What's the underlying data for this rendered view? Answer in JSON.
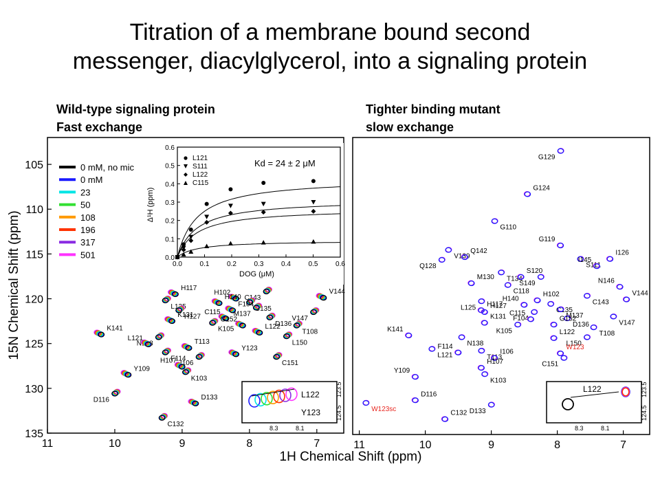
{
  "title": {
    "line1": "Titration of a membrane bound second",
    "line2": "messenger, diacylglycerol, into a signaling protein"
  },
  "left_heading": {
    "line1": "Wild-type signaling protein",
    "line2": "Fast exchange"
  },
  "right_heading": {
    "line1": "Tighter binding mutant",
    "line2": "slow exchange"
  },
  "chart_data": [
    {
      "type": "scatter",
      "panel": "left-hsqc",
      "xlabel": "1H Chemical Shift (ppm)",
      "ylabel": "15N Chemical Shift (ppm)",
      "xlim": [
        11,
        6.6
      ],
      "ylim": [
        135,
        102
      ],
      "x_ticks": [
        11,
        10,
        9,
        8,
        7
      ],
      "y_ticks": [
        105,
        110,
        115,
        120,
        125,
        130,
        135
      ],
      "legend": {
        "placement": "top-left",
        "entries": [
          {
            "label": "0 mM, no mic",
            "color": "#000000"
          },
          {
            "label": "0 mM",
            "color": "#1a1aff"
          },
          {
            "label": "23",
            "color": "#00e5e5"
          },
          {
            "label": "50",
            "color": "#33e033"
          },
          {
            "label": "108",
            "color": "#ff9900"
          },
          {
            "label": "196",
            "color": "#ff3300"
          },
          {
            "label": "317",
            "color": "#8a2be2"
          },
          {
            "label": "501",
            "color": "#ff33ff"
          }
        ]
      },
      "peaks": [
        {
          "label": "C143",
          "x": 7.75,
          "y": 119.2
        },
        {
          "label": "H117",
          "x": 9.1,
          "y": 119.5
        },
        {
          "label": "L125",
          "x": 9.25,
          "y": 120.2
        },
        {
          "label": "H102",
          "x": 8.2,
          "y": 120.0
        },
        {
          "label": "C135",
          "x": 8.0,
          "y": 120.4
        },
        {
          "label": "H140",
          "x": 8.45,
          "y": 120.5
        },
        {
          "label": "M137",
          "x": 7.9,
          "y": 121.0
        },
        {
          "label": "F104",
          "x": 8.25,
          "y": 121.3
        },
        {
          "label": "H127",
          "x": 9.05,
          "y": 121.3
        },
        {
          "label": "C115",
          "x": 8.35,
          "y": 122.2
        },
        {
          "label": "D136",
          "x": 7.7,
          "y": 122.1
        },
        {
          "label": "V144",
          "x": 6.9,
          "y": 119.9
        },
        {
          "label": "V147",
          "x": 7.05,
          "y": 121.5
        },
        {
          "label": "K131",
          "x": 9.15,
          "y": 122.5
        },
        {
          "label": "K105",
          "x": 8.55,
          "y": 122.7
        },
        {
          "label": "G152",
          "x": 8.1,
          "y": 123.0
        },
        {
          "label": "T108",
          "x": 7.3,
          "y": 123.0
        },
        {
          "label": "K141",
          "x": 10.2,
          "y": 124.0
        },
        {
          "label": "N138",
          "x": 9.35,
          "y": 124.3
        },
        {
          "label": "L122",
          "x": 7.85,
          "y": 123.8
        },
        {
          "label": "L150",
          "x": 7.45,
          "y": 124.2
        },
        {
          "label": "L121",
          "x": 9.5,
          "y": 125.1
        },
        {
          "label": "F114",
          "x": 9.25,
          "y": 126.0
        },
        {
          "label": "T113",
          "x": 8.9,
          "y": 125.5
        },
        {
          "label": "I106",
          "x": 8.75,
          "y": 126.5
        },
        {
          "label": "Y123",
          "x": 8.2,
          "y": 126.2
        },
        {
          "label": "C151",
          "x": 7.6,
          "y": 126.5
        },
        {
          "label": "H107",
          "x": 9.0,
          "y": 127.6
        },
        {
          "label": "K103",
          "x": 8.95,
          "y": 128.2
        },
        {
          "label": "Y109",
          "x": 9.8,
          "y": 128.5
        },
        {
          "label": "D116",
          "x": 10.0,
          "y": 130.6
        },
        {
          "label": "D133",
          "x": 8.8,
          "y": 131.7
        },
        {
          "label": "C132",
          "x": 9.3,
          "y": 133.3
        }
      ],
      "inset": {
        "labels": [
          "L122",
          "Y123"
        ],
        "x_ticks": [
          "8.3",
          "8.1"
        ],
        "y_ticks": [
          "124.5",
          "123.5"
        ]
      }
    },
    {
      "type": "line",
      "panel": "binding-curve-inset",
      "xlabel": "DOG (μM)",
      "ylabel": "Δ¹H (ppm)",
      "annotation": "Kd = 24 ± 2 μM",
      "xlim": [
        0,
        0.6
      ],
      "ylim": [
        0,
        0.6
      ],
      "x_ticks": [
        "0.0",
        "0.1",
        "0.2",
        "0.3",
        "0.4",
        "0.5",
        "0.6"
      ],
      "y_ticks": [
        "0.0",
        "0.1",
        "0.2",
        "0.3",
        "0.4",
        "0.5",
        "0.6"
      ],
      "legend": {
        "placement": "top-left"
      },
      "x": [
        0,
        0.023,
        0.05,
        0.108,
        0.196,
        0.317,
        0.501
      ],
      "series": [
        {
          "name": "L121",
          "marker": "circle",
          "values": [
            0,
            0.07,
            0.15,
            0.29,
            0.37,
            0.405,
            0.415
          ],
          "fit_max": 0.43
        },
        {
          "name": "S111",
          "marker": "triangle-down",
          "values": [
            0,
            0.05,
            0.11,
            0.22,
            0.28,
            0.29,
            0.3
          ],
          "fit_max": 0.315
        },
        {
          "name": "L122",
          "marker": "diamond",
          "values": [
            0,
            0.04,
            0.09,
            0.19,
            0.24,
            0.245,
            0.25
          ],
          "fit_max": 0.265
        },
        {
          "name": "C115",
          "marker": "triangle-up",
          "values": [
            0,
            0.015,
            0.03,
            0.06,
            0.075,
            0.08,
            0.085
          ],
          "fit_max": 0.09
        }
      ]
    },
    {
      "type": "scatter",
      "panel": "right-hsqc",
      "xlabel": "1H Chemical Shift (ppm)",
      "xlim": [
        11.1,
        6.6
      ],
      "ylim": [
        135,
        102
      ],
      "x_ticks": [
        11,
        10,
        9,
        8,
        7
      ],
      "peaks": [
        {
          "label": "G129",
          "x": 7.95,
          "y": 103.5
        },
        {
          "label": "G124",
          "x": 8.45,
          "y": 108.3
        },
        {
          "label": "G110",
          "x": 8.95,
          "y": 111.3
        },
        {
          "label": "G119",
          "x": 7.95,
          "y": 114.0
        },
        {
          "label": "V139",
          "x": 9.65,
          "y": 114.5
        },
        {
          "label": "Q142",
          "x": 9.4,
          "y": 115.3
        },
        {
          "label": "Q128",
          "x": 9.75,
          "y": 115.6
        },
        {
          "label": "I126",
          "x": 7.2,
          "y": 115.5
        },
        {
          "label": "S111",
          "x": 7.65,
          "y": 115.5
        },
        {
          "label": "I145",
          "x": 7.4,
          "y": 116.3
        },
        {
          "label": "T134",
          "x": 8.85,
          "y": 117.0
        },
        {
          "label": "S120",
          "x": 8.55,
          "y": 117.5
        },
        {
          "label": "S149",
          "x": 8.25,
          "y": 117.5
        },
        {
          "label": "M130",
          "x": 9.3,
          "y": 118.2
        },
        {
          "label": "C118",
          "x": 8.75,
          "y": 118.4
        },
        {
          "label": "N146",
          "x": 7.05,
          "y": 118.6
        },
        {
          "label": "C143",
          "x": 7.55,
          "y": 119.6
        },
        {
          "label": "V144",
          "x": 6.95,
          "y": 120.0
        },
        {
          "label": "L125",
          "x": 9.15,
          "y": 120.2
        },
        {
          "label": "H102",
          "x": 8.3,
          "y": 120.1
        },
        {
          "label": "C135",
          "x": 8.1,
          "y": 120.5
        },
        {
          "label": "H140",
          "x": 8.5,
          "y": 120.6
        },
        {
          "label": "M137",
          "x": 7.95,
          "y": 121.1
        },
        {
          "label": "H117",
          "x": 9.15,
          "y": 121.2
        },
        {
          "label": "F104",
          "x": 8.35,
          "y": 121.4
        },
        {
          "label": "H127",
          "x": 9.1,
          "y": 121.4
        },
        {
          "label": "V147",
          "x": 7.15,
          "y": 121.9
        },
        {
          "label": "C115",
          "x": 8.4,
          "y": 122.2
        },
        {
          "label": "D136",
          "x": 7.85,
          "y": 122.1
        },
        {
          "label": "K131",
          "x": 9.1,
          "y": 122.6
        },
        {
          "label": "K105",
          "x": 8.6,
          "y": 122.8
        },
        {
          "label": "G152",
          "x": 8.05,
          "y": 122.8
        },
        {
          "label": "T108",
          "x": 7.45,
          "y": 123.1
        },
        {
          "label": "K141",
          "x": 10.25,
          "y": 124.0
        },
        {
          "label": "N138",
          "x": 9.45,
          "y": 124.2
        },
        {
          "label": "L122",
          "x": 8.05,
          "y": 124.3
        },
        {
          "label": "L150",
          "x": 7.55,
          "y": 124.2
        },
        {
          "label": "W123",
          "x": 7.95,
          "y": 126.0
        },
        {
          "label": "L121",
          "x": 9.9,
          "y": 125.5
        },
        {
          "label": "F114",
          "x": 9.5,
          "y": 125.9
        },
        {
          "label": "T113",
          "x": 9.15,
          "y": 125.7
        },
        {
          "label": "I106",
          "x": 8.95,
          "y": 126.5
        },
        {
          "label": "C151",
          "x": 7.9,
          "y": 126.5
        },
        {
          "label": "H107",
          "x": 9.15,
          "y": 127.6
        },
        {
          "label": "K103",
          "x": 9.1,
          "y": 128.3
        },
        {
          "label": "Y109",
          "x": 10.15,
          "y": 128.6
        },
        {
          "label": "W123sc",
          "x": 10.9,
          "y": 131.5
        },
        {
          "label": "D116",
          "x": 10.15,
          "y": 131.2
        },
        {
          "label": "D133",
          "x": 9.0,
          "y": 131.7
        },
        {
          "label": "C132",
          "x": 9.7,
          "y": 133.3
        }
      ],
      "inset": {
        "labels": [
          "L122"
        ],
        "x_ticks": [
          "8.3",
          "8.1"
        ],
        "y_ticks": [
          "124.5",
          "123.5"
        ]
      }
    }
  ]
}
